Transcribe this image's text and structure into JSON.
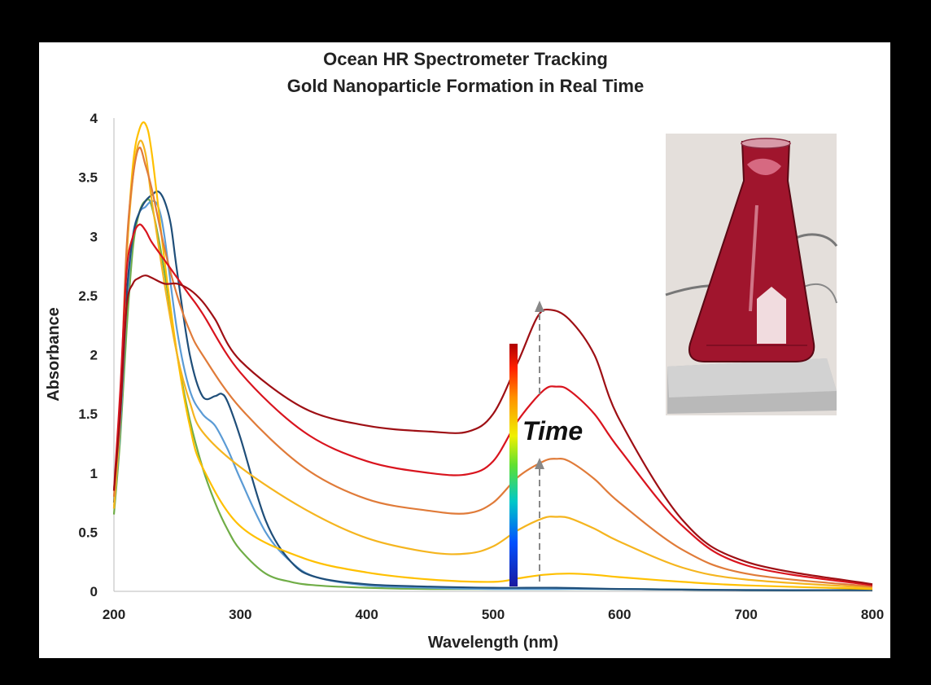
{
  "chart_data": {
    "type": "line",
    "title": [
      "Ocean HR Spectrometer Tracking",
      "Gold Nanoparticle Formation in Real Time"
    ],
    "xlabel": "Wavelength (nm)",
    "ylabel": "Absorbance",
    "xlim": [
      200,
      800
    ],
    "ylim": [
      0,
      4
    ],
    "xticks": [
      "200",
      "300",
      "400",
      "500",
      "600",
      "700",
      "800"
    ],
    "yticks": [
      "0",
      "0.5",
      "1",
      "1.5",
      "2",
      "2.5",
      "3",
      "3.5",
      "4"
    ],
    "grid": false,
    "annotation": "Time",
    "series": [
      {
        "color": "#70ad47",
        "x": [
          200,
          205,
          210,
          215,
          220,
          225,
          230,
          240,
          250,
          260,
          270,
          280,
          290,
          300,
          320,
          340,
          360,
          400,
          450,
          500,
          550,
          600,
          700,
          800
        ],
        "y": [
          0.65,
          1.3,
          2.2,
          2.9,
          3.2,
          3.3,
          3.25,
          2.7,
          2.0,
          1.45,
          1.05,
          0.75,
          0.52,
          0.35,
          0.15,
          0.08,
          0.05,
          0.03,
          0.02,
          0.02,
          0.02,
          0.02,
          0.01,
          0.01
        ]
      },
      {
        "color": "#5b9bd5",
        "x": [
          200,
          205,
          210,
          215,
          220,
          225,
          230,
          235,
          240,
          250,
          260,
          270,
          280,
          290,
          300,
          320,
          340,
          360,
          400,
          450,
          500,
          550,
          600,
          700,
          800
        ],
        "y": [
          0.7,
          1.4,
          2.4,
          3.0,
          3.2,
          3.25,
          3.3,
          3.25,
          3.0,
          2.2,
          1.7,
          1.5,
          1.4,
          1.2,
          0.95,
          0.5,
          0.25,
          0.12,
          0.05,
          0.03,
          0.02,
          0.02,
          0.02,
          0.01,
          0.01
        ]
      },
      {
        "color": "#1f4e79",
        "x": [
          200,
          205,
          210,
          215,
          220,
          225,
          230,
          235,
          240,
          245,
          250,
          260,
          270,
          280,
          285,
          290,
          300,
          320,
          340,
          360,
          400,
          450,
          500,
          550,
          600,
          700,
          800
        ],
        "y": [
          0.75,
          1.5,
          2.5,
          3.0,
          3.2,
          3.3,
          3.35,
          3.38,
          3.3,
          3.1,
          2.7,
          2.0,
          1.65,
          1.65,
          1.67,
          1.6,
          1.3,
          0.6,
          0.25,
          0.12,
          0.06,
          0.04,
          0.03,
          0.03,
          0.02,
          0.01,
          0.01
        ]
      },
      {
        "color": "#ffc000",
        "x": [
          200,
          205,
          210,
          215,
          220,
          225,
          230,
          240,
          250,
          260,
          270,
          300,
          350,
          400,
          450,
          500,
          520,
          540,
          560,
          580,
          600,
          650,
          700,
          800
        ],
        "y": [
          0.7,
          1.5,
          2.8,
          3.6,
          3.9,
          3.95,
          3.7,
          2.8,
          2.0,
          1.4,
          1.05,
          0.55,
          0.28,
          0.16,
          0.1,
          0.08,
          0.11,
          0.14,
          0.15,
          0.14,
          0.12,
          0.08,
          0.05,
          0.02
        ]
      },
      {
        "color": "#f5b51f",
        "x": [
          200,
          205,
          210,
          215,
          220,
          225,
          230,
          240,
          250,
          260,
          270,
          300,
          350,
          400,
          450,
          480,
          500,
          520,
          540,
          550,
          560,
          580,
          600,
          650,
          700,
          800
        ],
        "y": [
          0.7,
          1.5,
          2.8,
          3.5,
          3.8,
          3.7,
          3.3,
          2.6,
          2.0,
          1.6,
          1.35,
          1.05,
          0.7,
          0.45,
          0.33,
          0.32,
          0.38,
          0.52,
          0.62,
          0.63,
          0.62,
          0.53,
          0.42,
          0.2,
          0.1,
          0.03
        ]
      },
      {
        "color": "#e07b39",
        "x": [
          200,
          205,
          210,
          215,
          220,
          225,
          230,
          240,
          250,
          260,
          270,
          300,
          350,
          400,
          450,
          480,
          500,
          520,
          540,
          550,
          560,
          580,
          600,
          650,
          700,
          800
        ],
        "y": [
          0.8,
          1.6,
          2.9,
          3.5,
          3.75,
          3.6,
          3.4,
          2.9,
          2.5,
          2.2,
          2.0,
          1.55,
          1.05,
          0.78,
          0.68,
          0.66,
          0.75,
          0.97,
          1.1,
          1.12,
          1.1,
          0.95,
          0.75,
          0.35,
          0.15,
          0.04
        ]
      },
      {
        "color": "#d9141e",
        "x": [
          200,
          205,
          210,
          215,
          220,
          225,
          230,
          240,
          250,
          260,
          270,
          300,
          350,
          400,
          450,
          480,
          500,
          520,
          540,
          550,
          560,
          580,
          600,
          650,
          700,
          800
        ],
        "y": [
          0.85,
          1.7,
          2.7,
          3.0,
          3.1,
          3.05,
          2.95,
          2.8,
          2.65,
          2.5,
          2.35,
          1.85,
          1.35,
          1.1,
          1.0,
          0.99,
          1.1,
          1.45,
          1.7,
          1.73,
          1.7,
          1.5,
          1.2,
          0.55,
          0.22,
          0.05
        ]
      },
      {
        "color": "#9e0f14",
        "x": [
          200,
          205,
          210,
          215,
          220,
          225,
          230,
          240,
          250,
          260,
          270,
          280,
          300,
          350,
          400,
          450,
          480,
          500,
          520,
          535,
          545,
          560,
          580,
          600,
          650,
          700,
          800
        ],
        "y": [
          0.85,
          1.5,
          2.4,
          2.6,
          2.65,
          2.67,
          2.65,
          2.6,
          2.6,
          2.55,
          2.45,
          2.3,
          1.95,
          1.55,
          1.4,
          1.35,
          1.35,
          1.5,
          1.95,
          2.32,
          2.38,
          2.3,
          2.0,
          1.45,
          0.6,
          0.25,
          0.06
        ]
      }
    ]
  }
}
